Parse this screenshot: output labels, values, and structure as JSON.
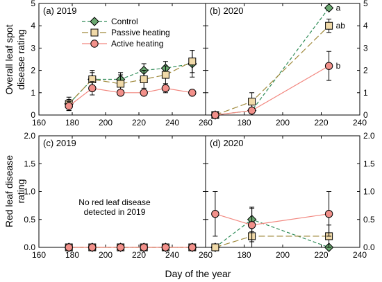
{
  "chart_data": {
    "type": "line",
    "xlabel": "Day of the year",
    "legend": {
      "placement": "top-left of panel (a)",
      "entries": [
        "Control",
        "Passive heating",
        "Active heating"
      ]
    },
    "series_styles": [
      {
        "name": "Control",
        "color": "#2e8b57",
        "marker": "diamond",
        "marker_fill": "#6aa870",
        "line": "dashed"
      },
      {
        "name": "Passive heating",
        "color": "#a08a3c",
        "marker": "square",
        "marker_fill": "#f0d9a8",
        "line": "long-dashed"
      },
      {
        "name": "Active heating",
        "color": "#f2877f",
        "marker": "circle",
        "marker_fill": "#f2908a",
        "line": "solid"
      }
    ],
    "rows": [
      {
        "ylabel_lines": [
          "Overall leaf spot",
          "disease rating"
        ]
      },
      {
        "ylabel_lines": [
          "Red leaf disease",
          "rating"
        ]
      }
    ],
    "panels": [
      {
        "id": "a",
        "label": "(a) 2019",
        "xlim": [
          160,
          260
        ],
        "ylim": [
          0,
          5
        ],
        "xticks": [
          160,
          180,
          200,
          220,
          240,
          260
        ],
        "yticks": [
          0,
          1,
          2,
          3,
          4,
          5
        ],
        "ytick_labels": [
          "0",
          "1",
          "2",
          "3",
          "4",
          "5"
        ],
        "series": [
          {
            "name": "Control",
            "x": [
              178,
              192,
              209,
              223,
              236,
              252
            ],
            "y": [
              0.5,
              1.6,
              1.6,
              2.0,
              2.1,
              2.3
            ],
            "err": [
              0.2,
              0.3,
              0.3,
              0.3,
              0.3,
              0.6
            ]
          },
          {
            "name": "Passive heating",
            "x": [
              178,
              192,
              209,
              223,
              236,
              252
            ],
            "y": [
              0.5,
              1.6,
              1.4,
              1.6,
              1.8,
              2.4
            ],
            "err": [
              0.3,
              0.4,
              0.4,
              0.4,
              0.4,
              0.5
            ]
          },
          {
            "name": "Active heating",
            "x": [
              178,
              192,
              209,
              223,
              236,
              252
            ],
            "y": [
              0.4,
              1.2,
              1.0,
              1.0,
              1.2,
              1.0
            ],
            "err": [
              0.2,
              0.3,
              0.0,
              0.0,
              0.2,
              0.0
            ]
          }
        ]
      },
      {
        "id": "b",
        "label": "(b) 2020",
        "xlim": [
          160,
          240
        ],
        "ylim": [
          0,
          5
        ],
        "xticks": [
          180,
          200,
          220,
          240
        ],
        "yticks": [
          0,
          1,
          2,
          3,
          4,
          5
        ],
        "ytick_labels": [
          "0",
          "1",
          "2",
          "3",
          "4",
          "5"
        ],
        "series": [
          {
            "name": "Control",
            "x": [
              165,
              184,
              224
            ],
            "y": [
              0.0,
              0.2,
              4.8
            ],
            "err": [
              0.0,
              0.1,
              0.1
            ]
          },
          {
            "name": "Passive heating",
            "x": [
              165,
              184,
              224
            ],
            "y": [
              0.0,
              0.6,
              4.0
            ],
            "err": [
              0.0,
              0.4,
              0.3
            ]
          },
          {
            "name": "Active heating",
            "x": [
              165,
              184,
              224
            ],
            "y": [
              0.0,
              0.2,
              2.2
            ],
            "err": [
              0.0,
              0.0,
              0.65
            ]
          }
        ],
        "annotations": [
          {
            "text": "a",
            "x": 224,
            "y": 4.8
          },
          {
            "text": "ab",
            "x": 224,
            "y": 4.0
          },
          {
            "text": "b",
            "x": 224,
            "y": 2.2
          }
        ]
      },
      {
        "id": "c",
        "label": "(c) 2019",
        "xlim": [
          160,
          260
        ],
        "ylim": [
          0,
          2
        ],
        "xticks": [
          160,
          180,
          200,
          220,
          240,
          260
        ],
        "yticks": [
          0,
          0.5,
          1,
          1.5,
          2
        ],
        "ytick_labels": [
          "0.0",
          "0.5",
          "1.0",
          "1.5",
          "2.0"
        ],
        "note": [
          "No red leaf disease",
          "detected in 2019"
        ],
        "series": [
          {
            "name": "Control",
            "x": [
              178,
              192,
              209,
              223,
              236,
              252
            ],
            "y": [
              0,
              0,
              0,
              0,
              0,
              0
            ],
            "err": [
              0,
              0,
              0,
              0,
              0,
              0
            ]
          },
          {
            "name": "Passive heating",
            "x": [
              178,
              192,
              209,
              223,
              236,
              252
            ],
            "y": [
              0,
              0,
              0,
              0,
              0,
              0
            ],
            "err": [
              0,
              0,
              0,
              0,
              0,
              0
            ]
          },
          {
            "name": "Active heating",
            "x": [
              178,
              192,
              209,
              223,
              236,
              252
            ],
            "y": [
              0,
              0,
              0,
              0,
              0,
              0
            ],
            "err": [
              0,
              0,
              0,
              0,
              0,
              0
            ]
          }
        ]
      },
      {
        "id": "d",
        "label": "(d) 2020",
        "xlim": [
          160,
          240
        ],
        "ylim": [
          0,
          2
        ],
        "xticks": [
          180,
          200,
          220,
          240
        ],
        "yticks": [
          0,
          0.5,
          1,
          1.5,
          2
        ],
        "ytick_labels": [
          "0.0",
          "0.5",
          "1.0",
          "1.5",
          "2.0"
        ],
        "series": [
          {
            "name": "Control",
            "x": [
              165,
              184,
              224
            ],
            "y": [
              0.0,
              0.5,
              0.0
            ],
            "err": [
              0.0,
              0.22,
              0.0
            ]
          },
          {
            "name": "Passive heating",
            "x": [
              165,
              184,
              224
            ],
            "y": [
              0.0,
              0.2,
              0.2
            ],
            "err": [
              0.0,
              0.2,
              0.2
            ]
          },
          {
            "name": "Active heating",
            "x": [
              165,
              184,
              224
            ],
            "y": [
              0.6,
              0.4,
              0.6
            ],
            "err": [
              0.4,
              0.3,
              0.4
            ]
          }
        ]
      }
    ]
  }
}
